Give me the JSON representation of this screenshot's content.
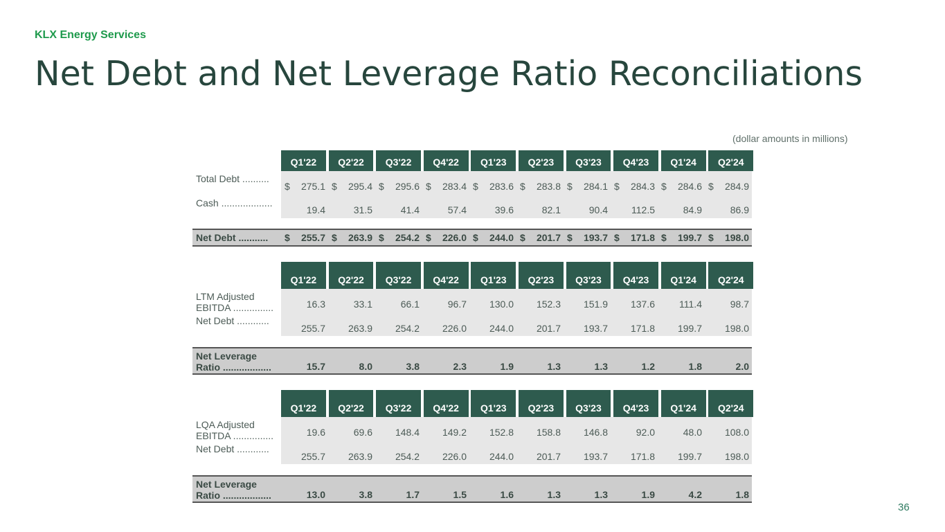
{
  "header": {
    "company": "KLX Energy Services",
    "title": "Net Debt and Net Leverage Ratio Reconciliations",
    "units_note": "(dollar amounts in millions)"
  },
  "quarters": [
    "Q1'22",
    "Q2'22",
    "Q3'22",
    "Q4'22",
    "Q1'23",
    "Q2'23",
    "Q3'23",
    "Q4'23",
    "Q1'24",
    "Q2'24"
  ],
  "net_debt_table": {
    "rows": [
      {
        "label": "Total Debt ..........",
        "currency": "$",
        "values": [
          "275.1",
          "295.4",
          "295.6",
          "283.4",
          "283.6",
          "283.8",
          "284.1",
          "284.3",
          "284.6",
          "284.9"
        ]
      },
      {
        "label": "Cash ...................",
        "values": [
          "19.4",
          "31.5",
          "41.4",
          "57.4",
          "39.6",
          "82.1",
          "90.4",
          "112.5",
          "84.9",
          "86.9"
        ]
      }
    ],
    "total": {
      "label": "Net Debt ...........",
      "currency": "$",
      "values": [
        "255.7",
        "263.9",
        "254.2",
        "226.0",
        "244.0",
        "201.7",
        "193.7",
        "171.8",
        "199.7",
        "198.0"
      ]
    }
  },
  "ltm_table": {
    "rows": [
      {
        "label_line1": "LTM Adjusted",
        "label_line2": "EBITDA ...............",
        "values": [
          "16.3",
          "33.1",
          "66.1",
          "96.7",
          "130.0",
          "152.3",
          "151.9",
          "137.6",
          "111.4",
          "98.7"
        ]
      },
      {
        "label": "Net Debt ............",
        "values": [
          "255.7",
          "263.9",
          "254.2",
          "226.0",
          "244.0",
          "201.7",
          "193.7",
          "171.8",
          "199.7",
          "198.0"
        ]
      }
    ],
    "total": {
      "label_line1": "Net Leverage",
      "label_line2": "Ratio ..................",
      "values": [
        "15.7",
        "8.0",
        "3.8",
        "2.3",
        "1.9",
        "1.3",
        "1.3",
        "1.2",
        "1.8",
        "2.0"
      ]
    }
  },
  "lqa_table": {
    "rows": [
      {
        "label_line1": "LQA Adjusted",
        "label_line2": "EBITDA ...............",
        "values": [
          "19.6",
          "69.6",
          "148.4",
          "149.2",
          "152.8",
          "158.8",
          "146.8",
          "92.0",
          "48.0",
          "108.0"
        ]
      },
      {
        "label": "Net Debt ............",
        "values": [
          "255.7",
          "263.9",
          "254.2",
          "226.0",
          "244.0",
          "201.7",
          "193.7",
          "171.8",
          "199.7",
          "198.0"
        ]
      }
    ],
    "total": {
      "label_line1": "Net Leverage",
      "label_line2": "Ratio ..................",
      "values": [
        "13.0",
        "3.8",
        "1.7",
        "1.5",
        "1.6",
        "1.3",
        "1.3",
        "1.9",
        "4.2",
        "1.8"
      ]
    }
  },
  "page_number": "36"
}
